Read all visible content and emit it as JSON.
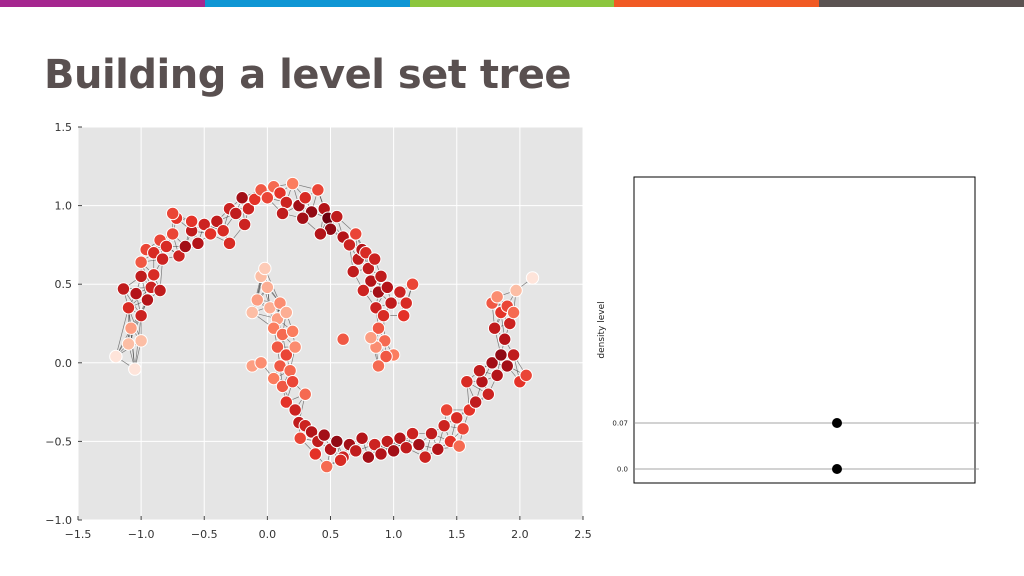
{
  "slide": {
    "title": "Building a level set tree",
    "stripe_colors": [
      "#a5278f",
      "#0f96d4",
      "#8cc63e",
      "#f15a24",
      "#5b5352"
    ]
  },
  "chart_data": [
    {
      "type": "scatter",
      "title": "",
      "xlabel": "",
      "ylabel": "",
      "xlim": [
        -1.5,
        2.5
      ],
      "ylim": [
        -1.0,
        1.5
      ],
      "xticks": [
        -1.5,
        -1.0,
        -0.5,
        0.0,
        0.5,
        1.0,
        1.5,
        2.0,
        2.5
      ],
      "yticks": [
        -1.0,
        -0.5,
        0.0,
        0.5,
        1.0,
        1.5
      ],
      "xtick_labels": [
        "−1.5",
        "−1.0",
        "−0.5",
        "0.0",
        "0.5",
        "1.0",
        "1.5",
        "2.0",
        "2.5"
      ],
      "ytick_labels": [
        "−1.0",
        "−0.5",
        "0.0",
        "0.5",
        "1.0",
        "1.5"
      ],
      "grid": true,
      "background": "#e5e5e5",
      "colormap": "Reds",
      "edge_color": "#222222",
      "points": [
        {
          "x": -1.2,
          "y": 0.04,
          "d": 0.05
        },
        {
          "x": -1.05,
          "y": -0.04,
          "d": 0.05
        },
        {
          "x": -1.1,
          "y": 0.12,
          "d": 0.2
        },
        {
          "x": -1.0,
          "y": 0.14,
          "d": 0.2
        },
        {
          "x": -1.08,
          "y": 0.22,
          "d": 0.3
        },
        {
          "x": -1.14,
          "y": 0.47,
          "d": 0.75
        },
        {
          "x": -1.1,
          "y": 0.35,
          "d": 0.65
        },
        {
          "x": -1.0,
          "y": 0.3,
          "d": 0.7
        },
        {
          "x": -1.04,
          "y": 0.44,
          "d": 0.8
        },
        {
          "x": -0.95,
          "y": 0.4,
          "d": 0.8
        },
        {
          "x": -1.0,
          "y": 0.55,
          "d": 0.75
        },
        {
          "x": -0.92,
          "y": 0.48,
          "d": 0.7
        },
        {
          "x": -0.85,
          "y": 0.46,
          "d": 0.75
        },
        {
          "x": -0.9,
          "y": 0.56,
          "d": 0.65
        },
        {
          "x": -1.0,
          "y": 0.64,
          "d": 0.5
        },
        {
          "x": -0.96,
          "y": 0.72,
          "d": 0.55
        },
        {
          "x": -0.9,
          "y": 0.7,
          "d": 0.65
        },
        {
          "x": -0.83,
          "y": 0.66,
          "d": 0.7
        },
        {
          "x": -0.85,
          "y": 0.78,
          "d": 0.55
        },
        {
          "x": -0.8,
          "y": 0.74,
          "d": 0.65
        },
        {
          "x": -0.75,
          "y": 0.82,
          "d": 0.55
        },
        {
          "x": -0.7,
          "y": 0.68,
          "d": 0.7
        },
        {
          "x": -0.65,
          "y": 0.74,
          "d": 0.85
        },
        {
          "x": -0.6,
          "y": 0.84,
          "d": 0.75
        },
        {
          "x": -0.55,
          "y": 0.76,
          "d": 0.8
        },
        {
          "x": -0.5,
          "y": 0.88,
          "d": 0.7
        },
        {
          "x": -0.45,
          "y": 0.82,
          "d": 0.6
        },
        {
          "x": -0.4,
          "y": 0.9,
          "d": 0.75
        },
        {
          "x": -0.35,
          "y": 0.84,
          "d": 0.65
        },
        {
          "x": -0.72,
          "y": 0.92,
          "d": 0.6
        },
        {
          "x": -0.75,
          "y": 0.95,
          "d": 0.55
        },
        {
          "x": -0.6,
          "y": 0.9,
          "d": 0.6
        },
        {
          "x": -0.3,
          "y": 0.98,
          "d": 0.7
        },
        {
          "x": -0.25,
          "y": 0.95,
          "d": 0.75
        },
        {
          "x": -0.2,
          "y": 1.05,
          "d": 0.85
        },
        {
          "x": -0.15,
          "y": 0.98,
          "d": 0.7
        },
        {
          "x": -0.1,
          "y": 1.04,
          "d": 0.6
        },
        {
          "x": -0.05,
          "y": 1.1,
          "d": 0.5
        },
        {
          "x": 0.0,
          "y": 1.05,
          "d": 0.55
        },
        {
          "x": 0.05,
          "y": 1.12,
          "d": 0.45
        },
        {
          "x": 0.1,
          "y": 1.08,
          "d": 0.6
        },
        {
          "x": 0.15,
          "y": 1.02,
          "d": 0.7
        },
        {
          "x": 0.2,
          "y": 1.14,
          "d": 0.4
        },
        {
          "x": 0.25,
          "y": 1.0,
          "d": 0.85
        },
        {
          "x": 0.3,
          "y": 1.05,
          "d": 0.65
        },
        {
          "x": 0.35,
          "y": 0.96,
          "d": 0.9
        },
        {
          "x": 0.4,
          "y": 1.1,
          "d": 0.55
        },
        {
          "x": 0.45,
          "y": 0.98,
          "d": 0.8
        },
        {
          "x": 0.48,
          "y": 0.92,
          "d": 1.0
        },
        {
          "x": 0.5,
          "y": 0.85,
          "d": 0.9
        },
        {
          "x": 0.55,
          "y": 0.93,
          "d": 0.75
        },
        {
          "x": 0.6,
          "y": 0.8,
          "d": 0.8
        },
        {
          "x": 0.42,
          "y": 0.82,
          "d": 0.8
        },
        {
          "x": 0.28,
          "y": 0.92,
          "d": 0.85
        },
        {
          "x": 0.12,
          "y": 0.95,
          "d": 0.75
        },
        {
          "x": -0.18,
          "y": 0.88,
          "d": 0.7
        },
        {
          "x": 0.65,
          "y": 0.75,
          "d": 0.7
        },
        {
          "x": 0.7,
          "y": 0.82,
          "d": 0.55
        },
        {
          "x": 0.72,
          "y": 0.66,
          "d": 0.75
        },
        {
          "x": 0.75,
          "y": 0.72,
          "d": 0.8
        },
        {
          "x": 0.8,
          "y": 0.6,
          "d": 0.75
        },
        {
          "x": 0.78,
          "y": 0.7,
          "d": 0.65
        },
        {
          "x": 0.85,
          "y": 0.66,
          "d": 0.7
        },
        {
          "x": 0.82,
          "y": 0.52,
          "d": 0.8
        },
        {
          "x": 0.88,
          "y": 0.45,
          "d": 0.85
        },
        {
          "x": 0.9,
          "y": 0.55,
          "d": 0.75
        },
        {
          "x": 0.95,
          "y": 0.48,
          "d": 0.8
        },
        {
          "x": 0.86,
          "y": 0.35,
          "d": 0.7
        },
        {
          "x": 0.92,
          "y": 0.3,
          "d": 0.65
        },
        {
          "x": 0.98,
          "y": 0.38,
          "d": 0.75
        },
        {
          "x": 0.88,
          "y": 0.22,
          "d": 0.5
        },
        {
          "x": 0.93,
          "y": 0.14,
          "d": 0.45
        },
        {
          "x": 0.86,
          "y": 0.1,
          "d": 0.35
        },
        {
          "x": 0.82,
          "y": 0.16,
          "d": 0.3
        },
        {
          "x": 1.0,
          "y": 0.05,
          "d": 0.4
        },
        {
          "x": 0.94,
          "y": 0.04,
          "d": 0.5
        },
        {
          "x": 0.88,
          "y": -0.02,
          "d": 0.45
        },
        {
          "x": 1.05,
          "y": 0.45,
          "d": 0.7
        },
        {
          "x": 1.1,
          "y": 0.38,
          "d": 0.65
        },
        {
          "x": 1.15,
          "y": 0.5,
          "d": 0.55
        },
        {
          "x": 1.08,
          "y": 0.3,
          "d": 0.6
        },
        {
          "x": -0.05,
          "y": 0.55,
          "d": 0.2
        },
        {
          "x": -0.02,
          "y": 0.6,
          "d": 0.15
        },
        {
          "x": 0.0,
          "y": 0.48,
          "d": 0.25
        },
        {
          "x": -0.08,
          "y": 0.4,
          "d": 0.3
        },
        {
          "x": 0.02,
          "y": 0.35,
          "d": 0.25
        },
        {
          "x": -0.12,
          "y": 0.32,
          "d": 0.2
        },
        {
          "x": 0.08,
          "y": 0.28,
          "d": 0.3
        },
        {
          "x": 0.1,
          "y": 0.38,
          "d": 0.35
        },
        {
          "x": 0.15,
          "y": 0.32,
          "d": 0.25
        },
        {
          "x": 0.05,
          "y": 0.22,
          "d": 0.4
        },
        {
          "x": 0.12,
          "y": 0.18,
          "d": 0.45
        },
        {
          "x": 0.2,
          "y": 0.2,
          "d": 0.4
        },
        {
          "x": 0.08,
          "y": 0.1,
          "d": 0.5
        },
        {
          "x": 0.15,
          "y": 0.05,
          "d": 0.55
        },
        {
          "x": 0.1,
          "y": -0.02,
          "d": 0.5
        },
        {
          "x": 0.18,
          "y": -0.05,
          "d": 0.45
        },
        {
          "x": 0.05,
          "y": -0.1,
          "d": 0.4
        },
        {
          "x": 0.12,
          "y": -0.15,
          "d": 0.5
        },
        {
          "x": 0.2,
          "y": -0.12,
          "d": 0.55
        },
        {
          "x": 0.15,
          "y": -0.25,
          "d": 0.6
        },
        {
          "x": 0.22,
          "y": -0.3,
          "d": 0.7
        },
        {
          "x": 0.25,
          "y": -0.38,
          "d": 0.75
        },
        {
          "x": 0.3,
          "y": -0.4,
          "d": 0.7
        },
        {
          "x": 0.26,
          "y": -0.48,
          "d": 0.55
        },
        {
          "x": 0.35,
          "y": -0.44,
          "d": 0.8
        },
        {
          "x": 0.4,
          "y": -0.5,
          "d": 0.75
        },
        {
          "x": 0.45,
          "y": -0.46,
          "d": 0.85
        },
        {
          "x": 0.5,
          "y": -0.55,
          "d": 0.8
        },
        {
          "x": 0.55,
          "y": -0.5,
          "d": 0.9
        },
        {
          "x": 0.6,
          "y": -0.6,
          "d": 0.7
        },
        {
          "x": 0.65,
          "y": -0.52,
          "d": 0.85
        },
        {
          "x": 0.7,
          "y": -0.56,
          "d": 0.75
        },
        {
          "x": 0.75,
          "y": -0.48,
          "d": 0.8
        },
        {
          "x": 0.8,
          "y": -0.6,
          "d": 0.85
        },
        {
          "x": 0.85,
          "y": -0.52,
          "d": 0.7
        },
        {
          "x": 0.9,
          "y": -0.58,
          "d": 0.8
        },
        {
          "x": 0.95,
          "y": -0.5,
          "d": 0.75
        },
        {
          "x": 1.0,
          "y": -0.56,
          "d": 0.85
        },
        {
          "x": 1.05,
          "y": -0.48,
          "d": 0.8
        },
        {
          "x": 1.1,
          "y": -0.54,
          "d": 0.75
        },
        {
          "x": 1.15,
          "y": -0.45,
          "d": 0.7
        },
        {
          "x": 1.2,
          "y": -0.52,
          "d": 0.85
        },
        {
          "x": 1.25,
          "y": -0.6,
          "d": 0.7
        },
        {
          "x": 1.3,
          "y": -0.45,
          "d": 0.75
        },
        {
          "x": 1.35,
          "y": -0.55,
          "d": 0.8
        },
        {
          "x": 1.4,
          "y": -0.4,
          "d": 0.7
        },
        {
          "x": 1.45,
          "y": -0.5,
          "d": 0.6
        },
        {
          "x": 1.5,
          "y": -0.35,
          "d": 0.65
        },
        {
          "x": 1.55,
          "y": -0.42,
          "d": 0.55
        },
        {
          "x": 1.6,
          "y": -0.3,
          "d": 0.6
        },
        {
          "x": 1.52,
          "y": -0.53,
          "d": 0.45
        },
        {
          "x": 1.42,
          "y": -0.3,
          "d": 0.55
        },
        {
          "x": 0.58,
          "y": -0.62,
          "d": 0.65
        },
        {
          "x": 0.47,
          "y": -0.66,
          "d": 0.45
        },
        {
          "x": 0.38,
          "y": -0.58,
          "d": 0.6
        },
        {
          "x": 1.65,
          "y": -0.25,
          "d": 0.75
        },
        {
          "x": 1.7,
          "y": -0.12,
          "d": 0.8
        },
        {
          "x": 1.75,
          "y": -0.2,
          "d": 0.7
        },
        {
          "x": 1.68,
          "y": -0.05,
          "d": 0.75
        },
        {
          "x": 1.78,
          "y": 0.0,
          "d": 0.85
        },
        {
          "x": 1.82,
          "y": -0.08,
          "d": 0.8
        },
        {
          "x": 1.85,
          "y": 0.05,
          "d": 0.9
        },
        {
          "x": 1.9,
          "y": -0.02,
          "d": 0.85
        },
        {
          "x": 1.95,
          "y": 0.05,
          "d": 0.75
        },
        {
          "x": 1.88,
          "y": 0.15,
          "d": 0.8
        },
        {
          "x": 1.92,
          "y": 0.25,
          "d": 0.7
        },
        {
          "x": 1.8,
          "y": 0.22,
          "d": 0.75
        },
        {
          "x": 1.85,
          "y": 0.32,
          "d": 0.6
        },
        {
          "x": 1.78,
          "y": 0.38,
          "d": 0.5
        },
        {
          "x": 1.9,
          "y": 0.36,
          "d": 0.55
        },
        {
          "x": 1.95,
          "y": 0.32,
          "d": 0.45
        },
        {
          "x": 1.82,
          "y": 0.42,
          "d": 0.35
        },
        {
          "x": 1.97,
          "y": 0.46,
          "d": 0.2
        },
        {
          "x": 2.1,
          "y": 0.54,
          "d": 0.05
        },
        {
          "x": 2.0,
          "y": -0.12,
          "d": 0.6
        },
        {
          "x": 2.05,
          "y": -0.08,
          "d": 0.55
        },
        {
          "x": 1.58,
          "y": -0.12,
          "d": 0.65
        },
        {
          "x": -0.12,
          "y": -0.02,
          "d": 0.3
        },
        {
          "x": -0.05,
          "y": 0.0,
          "d": 0.35
        },
        {
          "x": 0.22,
          "y": 0.1,
          "d": 0.35
        },
        {
          "x": 0.3,
          "y": -0.2,
          "d": 0.45
        },
        {
          "x": 0.6,
          "y": 0.15,
          "d": 0.5
        },
        {
          "x": 0.76,
          "y": 0.46,
          "d": 0.7
        },
        {
          "x": 0.68,
          "y": 0.58,
          "d": 0.75
        },
        {
          "x": -0.3,
          "y": 0.76,
          "d": 0.65
        }
      ]
    },
    {
      "type": "scatter",
      "title": "",
      "xlabel": "",
      "ylabel": "density level",
      "ytick_labels": [
        "0.07",
        "0.0"
      ],
      "levels": [
        0.07,
        0.0
      ],
      "marker_color": "#000000",
      "grid": true
    }
  ]
}
